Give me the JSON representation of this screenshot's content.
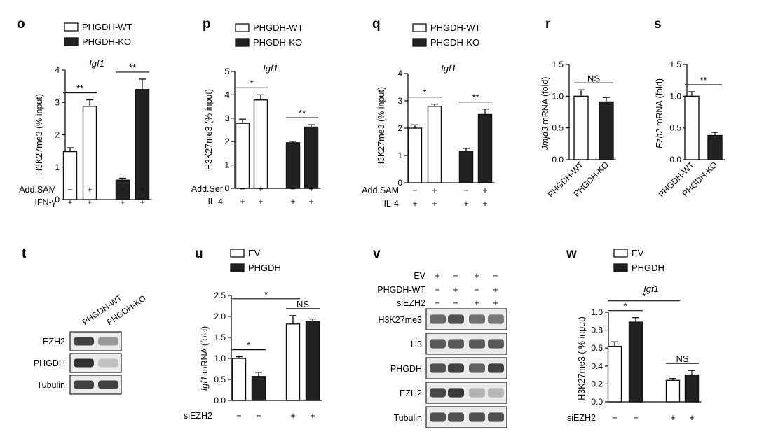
{
  "chart_data": [
    {
      "id": "o",
      "type": "bar",
      "panel_label": "o",
      "gene": "Igf1",
      "ylabel": "H3K27me3 (% input)",
      "ylim": [
        0,
        4
      ],
      "yticks": [
        "0",
        "1",
        "2",
        "3",
        "4"
      ],
      "legend": [
        "PHGDH-WT",
        "PHGDH-KO"
      ],
      "values": [
        1.48,
        2.88,
        0.6,
        3.4
      ],
      "errors": [
        0.12,
        0.2,
        0.06,
        0.32
      ],
      "fills": [
        "#ffffff",
        "#ffffff",
        "#222222",
        "#222222"
      ],
      "conditions": [
        {
          "name": "Add.SAM",
          "marks": [
            "−",
            "+",
            "−",
            "+"
          ]
        },
        {
          "name": "IFN-γ",
          "marks": [
            "+",
            "+",
            "+",
            "+"
          ]
        }
      ],
      "sig": [
        {
          "from": 0,
          "to": 1,
          "label": "**"
        },
        {
          "from": 2,
          "to": 3,
          "label": "**"
        }
      ]
    },
    {
      "id": "p",
      "type": "bar",
      "panel_label": "p",
      "gene": "Igf1",
      "ylabel": "H3K27me3 (% input)",
      "ylim": [
        0,
        5
      ],
      "yticks": [
        "0",
        "1",
        "2",
        "3",
        "4",
        "5"
      ],
      "legend": [
        "PHGDH-WT",
        "PHGDH-KO"
      ],
      "values": [
        2.78,
        3.78,
        1.95,
        2.62
      ],
      "errors": [
        0.18,
        0.22,
        0.06,
        0.1
      ],
      "fills": [
        "#ffffff",
        "#ffffff",
        "#222222",
        "#222222"
      ],
      "conditions": [
        {
          "name": "Add.Ser",
          "marks": [
            "−",
            "+",
            "−",
            "+"
          ]
        },
        {
          "name": "IL-4",
          "marks": [
            "+",
            "+",
            "+",
            "+"
          ]
        }
      ],
      "sig": [
        {
          "from": 0,
          "to": 1,
          "label": "*"
        },
        {
          "from": 2,
          "to": 3,
          "label": "**"
        }
      ]
    },
    {
      "id": "q",
      "type": "bar",
      "panel_label": "q",
      "gene": "Igf1",
      "ylabel": "H3K27me3 (% input)",
      "ylim": [
        0,
        4
      ],
      "yticks": [
        "0",
        "1",
        "2",
        "3",
        "4"
      ],
      "legend": [
        "PHGDH-WT",
        "PHGDH-KO"
      ],
      "values": [
        2.0,
        2.8,
        1.16,
        2.5
      ],
      "errors": [
        0.12,
        0.08,
        0.1,
        0.2
      ],
      "fills": [
        "#ffffff",
        "#ffffff",
        "#222222",
        "#222222"
      ],
      "conditions": [
        {
          "name": "Add.SAM",
          "marks": [
            "−",
            "+",
            "−",
            "+"
          ]
        },
        {
          "name": "IL-4",
          "marks": [
            "+",
            "+",
            "+",
            "+"
          ]
        }
      ],
      "sig": [
        {
          "from": 0,
          "to": 1,
          "label": "*"
        },
        {
          "from": 2,
          "to": 3,
          "label": "**"
        }
      ]
    },
    {
      "id": "r",
      "type": "bar",
      "panel_label": "r",
      "ylabel_italic": "Jmjd3",
      "ylabel_rest": " mRNA (fold)",
      "ylim": [
        0,
        1.5
      ],
      "yticks": [
        "0.0",
        "0.5",
        "1.0",
        "1.5"
      ],
      "categories": [
        "PHGDH-WT",
        "PHGDH-KO"
      ],
      "values": [
        1.0,
        0.91
      ],
      "errors": [
        0.1,
        0.07
      ],
      "fills": [
        "#ffffff",
        "#222222"
      ],
      "sig": [
        {
          "from": 0,
          "to": 1,
          "label": "NS"
        }
      ]
    },
    {
      "id": "s",
      "type": "bar",
      "panel_label": "s",
      "ylabel_italic": "Ezh2",
      "ylabel_rest": " mRNA (fold)",
      "ylim": [
        0,
        1.5
      ],
      "yticks": [
        "0.0",
        "0.5",
        "1.0",
        "1.5"
      ],
      "categories": [
        "PHGDH-WT",
        "PHGDH-KO"
      ],
      "values": [
        1.0,
        0.38
      ],
      "errors": [
        0.07,
        0.05
      ],
      "fills": [
        "#ffffff",
        "#222222"
      ],
      "sig": [
        {
          "from": 0,
          "to": 1,
          "label": "**"
        }
      ]
    },
    {
      "id": "u",
      "type": "bar",
      "panel_label": "u",
      "ylabel_italic": "Igf1",
      "ylabel_rest": " mRNA (fold)",
      "ylim": [
        0,
        2.5
      ],
      "yticks": [
        "0.0",
        "0.5",
        "1.0",
        "1.5",
        "2.0",
        "2.5"
      ],
      "legend": [
        "EV",
        "PHGDH"
      ],
      "values": [
        1.0,
        0.57,
        1.82,
        1.88
      ],
      "errors": [
        0.04,
        0.1,
        0.2,
        0.06
      ],
      "fills": [
        "#ffffff",
        "#222222",
        "#ffffff",
        "#222222"
      ],
      "conditions": [
        {
          "name": "siEZH2",
          "marks": [
            "−",
            "−",
            "+",
            "+"
          ]
        }
      ],
      "sig": [
        {
          "from": 0,
          "to": 1,
          "label": "*"
        },
        {
          "from": 0,
          "to": 2,
          "label": "*"
        },
        {
          "from": 2,
          "to": 3,
          "label": "NS"
        }
      ]
    },
    {
      "id": "w",
      "type": "bar",
      "panel_label": "w",
      "gene": "Igf1",
      "ylabel": "H3K27me3 ( % input)",
      "ylim": [
        0,
        1.0
      ],
      "yticks": [
        "0.0",
        "0.2",
        "0.4",
        "0.6",
        "0.8",
        "1.0"
      ],
      "legend": [
        "EV",
        "PHGDH"
      ],
      "values": [
        0.62,
        0.89,
        0.24,
        0.3
      ],
      "errors": [
        0.05,
        0.05,
        0.02,
        0.05
      ],
      "fills": [
        "#ffffff",
        "#222222",
        "#ffffff",
        "#222222"
      ],
      "conditions": [
        {
          "name": "siEZH2",
          "marks": [
            "−",
            "−",
            "+",
            "+"
          ]
        }
      ],
      "sig": [
        {
          "from": 0,
          "to": 1,
          "label": "*"
        },
        {
          "from": 0,
          "to": 2,
          "label": "*"
        },
        {
          "from": 2,
          "to": 3,
          "label": "NS"
        }
      ]
    }
  ],
  "blot_t": {
    "panel_label": "t",
    "lanes": [
      "PHGDH-WT",
      "PHGDH-KO"
    ],
    "rows": [
      {
        "name": "EZH2",
        "intensity": [
          0.85,
          0.3
        ]
      },
      {
        "name": "PHGDH",
        "intensity": [
          0.95,
          0.05
        ]
      },
      {
        "name": "Tubulin",
        "intensity": [
          0.85,
          0.85
        ]
      }
    ]
  },
  "blot_v": {
    "panel_label": "v",
    "conditions": [
      {
        "name": "EV",
        "marks": [
          "+",
          "−",
          "+",
          "−"
        ]
      },
      {
        "name": "PHGDH-WT",
        "marks": [
          "−",
          "+",
          "−",
          "+"
        ]
      },
      {
        "name": "siEZH2",
        "marks": [
          "−",
          "−",
          "+",
          "+"
        ]
      }
    ],
    "rows": [
      {
        "name": "H3K27me3",
        "intensity": [
          0.6,
          0.75,
          0.55,
          0.5
        ]
      },
      {
        "name": "H3",
        "intensity": [
          0.7,
          0.7,
          0.7,
          0.7
        ]
      },
      {
        "name": "PHGDH",
        "intensity": [
          0.75,
          0.85,
          0.65,
          0.85
        ]
      },
      {
        "name": "EZH2",
        "intensity": [
          0.8,
          0.9,
          0.15,
          0.12
        ]
      },
      {
        "name": "Tubulin",
        "intensity": [
          0.75,
          0.75,
          0.75,
          0.75
        ]
      }
    ]
  }
}
